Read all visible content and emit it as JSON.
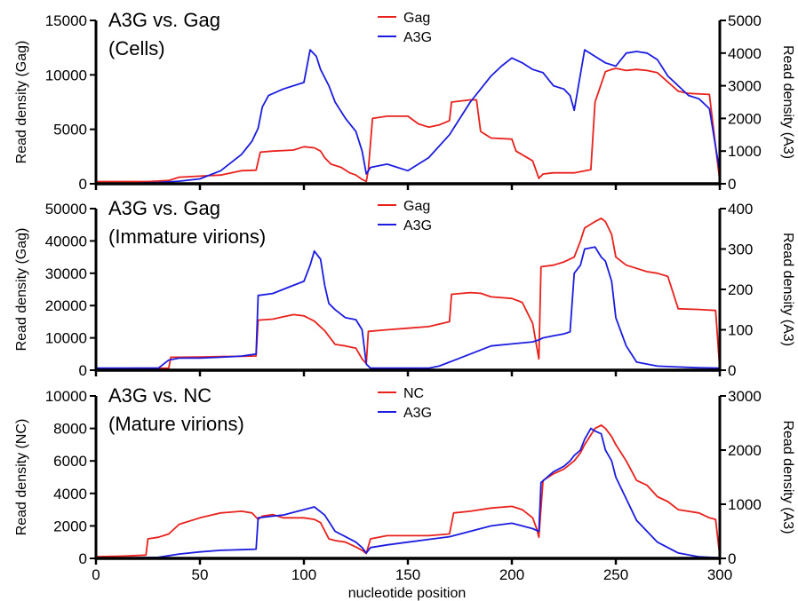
{
  "xlabel": "nucleotide position",
  "chart_data": [
    {
      "type": "line",
      "title_lines": [
        "A3G vs. Gag",
        "(Cells)"
      ],
      "ylabel": "Read density (Gag)",
      "y2label": "Read density (A3)",
      "xlim": [
        0,
        300
      ],
      "ylim": [
        0,
        15000
      ],
      "y2lim": [
        0,
        5000
      ],
      "xticks": [
        0,
        50,
        100,
        150,
        200,
        250,
        300
      ],
      "yticks": [
        0,
        5000,
        10000,
        15000
      ],
      "y2ticks": [
        0,
        1000,
        2000,
        3000,
        4000,
        5000
      ],
      "legend_position": "top-center",
      "series": [
        {
          "name": "Gag",
          "color": "#e8211d",
          "axis": "left",
          "x": [
            0,
            10,
            25,
            30,
            35,
            40,
            50,
            60,
            70,
            77,
            79,
            85,
            90,
            95,
            100,
            105,
            108,
            110,
            113,
            118,
            122,
            125,
            128,
            130,
            131,
            133,
            140,
            150,
            155,
            160,
            165,
            170,
            171,
            180,
            183,
            185,
            190,
            200,
            202,
            210,
            213,
            215,
            220,
            230,
            238,
            240,
            245,
            248,
            250,
            255,
            260,
            265,
            270,
            280,
            285,
            295,
            300
          ],
          "y": [
            200,
            200,
            200,
            250,
            300,
            600,
            700,
            800,
            1200,
            1250,
            2900,
            3000,
            3050,
            3100,
            3400,
            3300,
            3000,
            2400,
            1800,
            1500,
            1000,
            800,
            400,
            200,
            1300,
            6000,
            6200,
            6200,
            5500,
            5200,
            5400,
            5800,
            7500,
            7700,
            7700,
            4800,
            4200,
            4100,
            3000,
            2100,
            500,
            900,
            1000,
            1000,
            1300,
            7500,
            10300,
            10500,
            10600,
            10400,
            10500,
            10400,
            10200,
            8500,
            8300,
            8200,
            200
          ]
        },
        {
          "name": "A3G",
          "color": "#1c1ce0",
          "axis": "right",
          "x": [
            0,
            20,
            30,
            40,
            50,
            60,
            70,
            75,
            78,
            80,
            83,
            90,
            100,
            103,
            106,
            108,
            112,
            115,
            120,
            125,
            128,
            130,
            132,
            140,
            150,
            160,
            170,
            180,
            190,
            195,
            200,
            205,
            210,
            215,
            220,
            225,
            228,
            230,
            235,
            240,
            245,
            250,
            255,
            260,
            265,
            270,
            275,
            280,
            285,
            290,
            295,
            300
          ],
          "y": [
            10,
            20,
            40,
            80,
            150,
            400,
            900,
            1300,
            1700,
            2350,
            2700,
            2900,
            3100,
            4100,
            3900,
            3500,
            3000,
            2500,
            2000,
            1600,
            1000,
            300,
            500,
            600,
            400,
            800,
            1500,
            2500,
            3300,
            3600,
            3850,
            3700,
            3500,
            3400,
            3000,
            2900,
            2700,
            2250,
            4100,
            3900,
            3700,
            3600,
            4000,
            4050,
            4000,
            3800,
            3300,
            3000,
            2700,
            2600,
            2300,
            350
          ]
        }
      ]
    },
    {
      "type": "line",
      "title_lines": [
        "A3G vs. Gag",
        "(Immature virions)"
      ],
      "ylabel": "Read density (Gag)",
      "y2label": "Read density (A3)",
      "xlim": [
        0,
        300
      ],
      "ylim": [
        0,
        50000
      ],
      "y2lim": [
        0,
        400
      ],
      "xticks": [
        0,
        50,
        100,
        150,
        200,
        250,
        300
      ],
      "yticks": [
        0,
        10000,
        20000,
        30000,
        40000,
        50000
      ],
      "y2ticks": [
        0,
        100,
        200,
        300,
        400
      ],
      "legend_position": "top-center",
      "series": [
        {
          "name": "Gag",
          "color": "#e8211d",
          "axis": "left",
          "x": [
            0,
            20,
            35,
            36,
            40,
            50,
            60,
            70,
            77,
            78,
            85,
            90,
            95,
            100,
            105,
            110,
            115,
            120,
            125,
            128,
            130,
            131,
            140,
            150,
            160,
            170,
            171,
            180,
            185,
            190,
            200,
            205,
            210,
            213,
            214,
            220,
            225,
            230,
            233,
            235,
            240,
            243,
            245,
            248,
            250,
            255,
            260,
            265,
            270,
            275,
            280,
            290,
            298,
            300
          ],
          "y": [
            500,
            600,
            600,
            4000,
            4000,
            4100,
            4200,
            4300,
            4400,
            15500,
            15800,
            16500,
            17200,
            16800,
            15200,
            12200,
            8000,
            7500,
            6800,
            3500,
            2000,
            12000,
            12500,
            13000,
            13500,
            15000,
            23500,
            24000,
            23800,
            22700,
            22200,
            21000,
            14500,
            3500,
            32000,
            32500,
            33500,
            35000,
            40000,
            44000,
            46000,
            47000,
            46000,
            42000,
            35000,
            32500,
            31500,
            30500,
            30000,
            29000,
            19000,
            18800,
            18500,
            0
          ]
        },
        {
          "name": "A3G",
          "color": "#1c1ce0",
          "axis": "right",
          "x": [
            0,
            20,
            30,
            35,
            40,
            50,
            60,
            70,
            77,
            78,
            85,
            90,
            95,
            100,
            103,
            105,
            108,
            110,
            112,
            115,
            120,
            125,
            128,
            130,
            132,
            140,
            145,
            150,
            160,
            165,
            170,
            180,
            190,
            200,
            210,
            213,
            215,
            220,
            225,
            228,
            230,
            233,
            235,
            240,
            243,
            245,
            248,
            250,
            255,
            260,
            270,
            280,
            290,
            300
          ],
          "y": [
            5,
            5,
            5,
            25,
            30,
            30,
            32,
            35,
            40,
            185,
            190,
            200,
            210,
            220,
            260,
            295,
            275,
            210,
            165,
            150,
            130,
            125,
            100,
            15,
            5,
            5,
            5,
            5,
            5,
            10,
            20,
            40,
            60,
            65,
            70,
            75,
            80,
            85,
            90,
            95,
            240,
            260,
            300,
            305,
            280,
            270,
            220,
            130,
            60,
            20,
            10,
            8,
            6,
            5
          ]
        }
      ]
    },
    {
      "type": "line",
      "title_lines": [
        "A3G vs. NC",
        "(Mature virions)"
      ],
      "ylabel": "Read density (NC)",
      "y2label": "Read density (A3)",
      "xlim": [
        0,
        300
      ],
      "ylim": [
        0,
        10000
      ],
      "y2lim": [
        0,
        3000
      ],
      "xticks": [
        0,
        50,
        100,
        150,
        200,
        250,
        300
      ],
      "xtick_labels": [
        "0",
        "50",
        "100",
        "150",
        "200",
        "250",
        "300"
      ],
      "yticks": [
        0,
        2000,
        4000,
        6000,
        8000,
        10000
      ],
      "y2ticks": [
        0,
        1000,
        2000,
        3000
      ],
      "legend_position": "top-center",
      "series": [
        {
          "name": "NC",
          "color": "#e8211d",
          "axis": "left",
          "x": [
            0,
            15,
            24,
            25,
            30,
            35,
            40,
            50,
            60,
            70,
            75,
            78,
            80,
            85,
            90,
            95,
            100,
            105,
            108,
            112,
            115,
            120,
            125,
            128,
            130,
            132,
            140,
            150,
            160,
            170,
            172,
            180,
            190,
            200,
            205,
            210,
            212,
            213,
            215,
            220,
            225,
            228,
            230,
            233,
            235,
            240,
            243,
            245,
            248,
            250,
            255,
            260,
            265,
            270,
            275,
            280,
            290,
            295,
            298,
            300
          ],
          "y": [
            100,
            150,
            200,
            1200,
            1300,
            1500,
            2100,
            2500,
            2800,
            2900,
            2800,
            2400,
            2600,
            2700,
            2500,
            2500,
            2500,
            2400,
            2200,
            1200,
            1100,
            1000,
            700,
            500,
            300,
            1200,
            1400,
            1400,
            1400,
            1500,
            2800,
            2900,
            3100,
            3200,
            3000,
            2500,
            1800,
            1300,
            4800,
            5200,
            5500,
            5800,
            6000,
            6500,
            7000,
            8000,
            8200,
            8000,
            7500,
            7000,
            6000,
            4800,
            4500,
            3800,
            3500,
            3000,
            2800,
            2500,
            2400,
            100
          ]
        },
        {
          "name": "A3G",
          "color": "#1c1ce0",
          "axis": "right",
          "x": [
            0,
            15,
            30,
            40,
            50,
            60,
            70,
            77,
            78,
            85,
            90,
            95,
            100,
            105,
            110,
            115,
            120,
            125,
            128,
            130,
            132,
            140,
            150,
            160,
            170,
            180,
            190,
            200,
            205,
            210,
            213,
            214,
            220,
            225,
            228,
            230,
            233,
            235,
            238,
            240,
            243,
            245,
            248,
            250,
            255,
            260,
            270,
            280,
            290,
            300
          ],
          "y": [
            10,
            10,
            20,
            80,
            120,
            150,
            160,
            170,
            750,
            780,
            800,
            850,
            900,
            950,
            800,
            500,
            400,
            300,
            200,
            100,
            200,
            250,
            300,
            350,
            400,
            500,
            600,
            650,
            600,
            550,
            500,
            1400,
            1600,
            1700,
            1800,
            1900,
            2000,
            2200,
            2400,
            2350,
            2300,
            2000,
            1800,
            1500,
            1100,
            700,
            300,
            100,
            30,
            10
          ]
        }
      ]
    }
  ]
}
